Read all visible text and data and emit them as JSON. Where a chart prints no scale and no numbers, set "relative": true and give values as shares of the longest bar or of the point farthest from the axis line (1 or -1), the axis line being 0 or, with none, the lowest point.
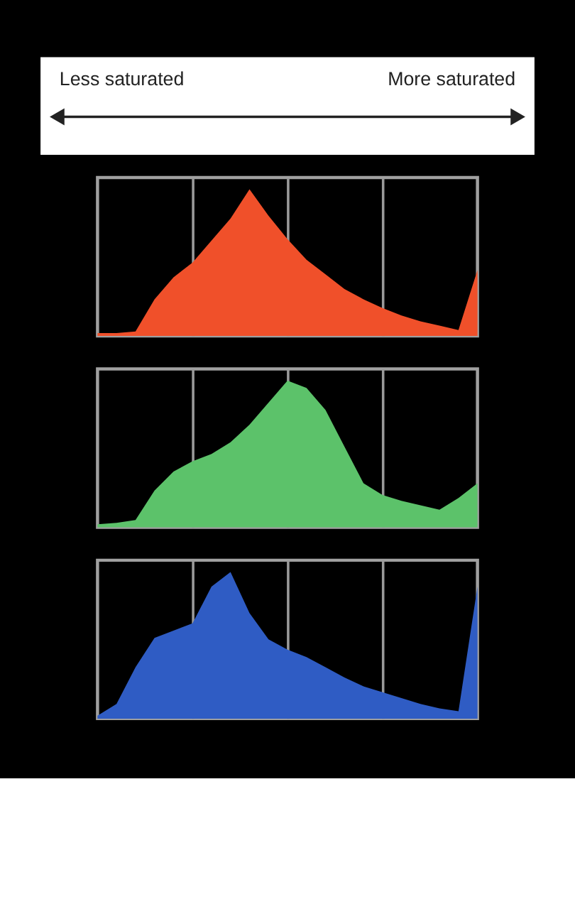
{
  "chart_data": [
    {
      "type": "area",
      "relative": true,
      "annotations": [
        "Less saturated",
        "More saturated"
      ],
      "grid": "x",
      "tick_labels": false,
      "categories": [
        null,
        null,
        null,
        null,
        null,
        null,
        null,
        null,
        null,
        null,
        null,
        null,
        null,
        null,
        null,
        null,
        null,
        null,
        null,
        null,
        null
      ],
      "series": [
        {
          "color": "#f0502a",
          "values": [
            0.02,
            0.02,
            0.03,
            0.25,
            0.4,
            0.5,
            0.65,
            0.8,
            1.0,
            0.82,
            0.66,
            0.52,
            0.42,
            0.32,
            0.25,
            0.19,
            0.14,
            0.1,
            0.07,
            0.04,
            0.45
          ]
        }
      ]
    },
    {
      "type": "area",
      "relative": true,
      "grid": "x",
      "tick_labels": false,
      "categories": [
        null,
        null,
        null,
        null,
        null,
        null,
        null,
        null,
        null,
        null,
        null,
        null,
        null,
        null,
        null,
        null,
        null,
        null,
        null,
        null,
        null
      ],
      "series": [
        {
          "color": "#5cc26a",
          "values": [
            0.02,
            0.03,
            0.05,
            0.25,
            0.38,
            0.45,
            0.5,
            0.58,
            0.7,
            0.85,
            1.0,
            0.95,
            0.8,
            0.55,
            0.3,
            0.22,
            0.18,
            0.15,
            0.12,
            0.2,
            0.3
          ]
        }
      ]
    },
    {
      "type": "area",
      "relative": true,
      "grid": "x",
      "tick_labels": false,
      "categories": [
        null,
        null,
        null,
        null,
        null,
        null,
        null,
        null,
        null,
        null,
        null,
        null,
        null,
        null,
        null,
        null,
        null,
        null,
        null,
        null,
        null
      ],
      "series": [
        {
          "color": "#2f5cc4",
          "values": [
            0.02,
            0.1,
            0.35,
            0.55,
            0.6,
            0.65,
            0.9,
            1.0,
            0.72,
            0.54,
            0.47,
            0.42,
            0.35,
            0.28,
            0.22,
            0.18,
            0.14,
            0.1,
            0.07,
            0.05,
            0.9
          ]
        }
      ]
    }
  ]
}
